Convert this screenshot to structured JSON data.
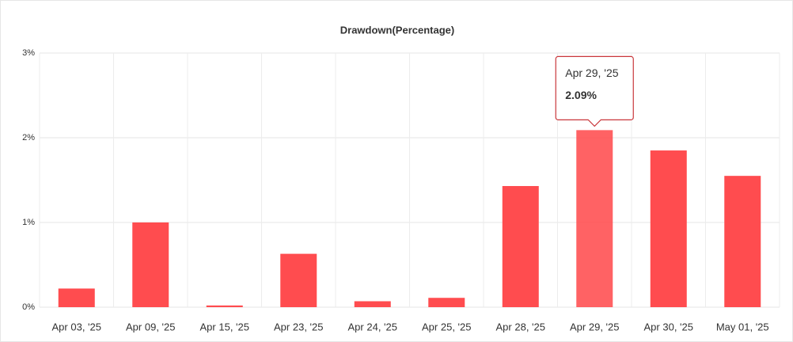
{
  "chart_data": {
    "type": "bar",
    "title": "Drawdown(Percentage)",
    "categories": [
      "Apr 03, '25",
      "Apr 09, '25",
      "Apr 15, '25",
      "Apr 23, '25",
      "Apr 24, '25",
      "Apr 25, '25",
      "Apr 28, '25",
      "Apr 29, '25",
      "Apr 30, '25",
      "May 01, '25"
    ],
    "values": [
      0.22,
      1.0,
      0.02,
      0.63,
      0.07,
      0.11,
      1.43,
      2.09,
      1.85,
      1.55
    ],
    "color": "#ff4c4f",
    "ylim": [
      0,
      3
    ],
    "yticks": [
      {
        "value": 0,
        "label": "0%"
      },
      {
        "value": 1,
        "label": "1%"
      },
      {
        "value": 2,
        "label": "2%"
      },
      {
        "value": 3,
        "label": "3%"
      }
    ],
    "grid": true,
    "tooltip": {
      "title": "Apr 29, '25",
      "value": "2.09%"
    }
  }
}
